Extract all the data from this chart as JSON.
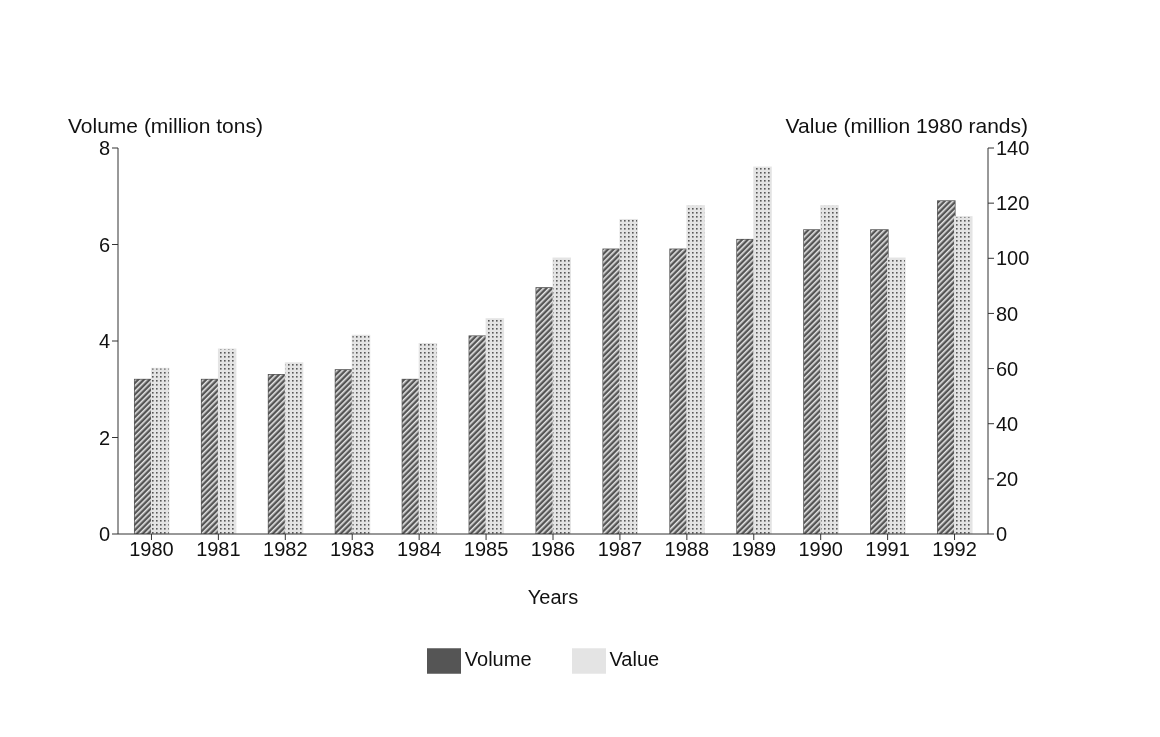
{
  "chart_data": {
    "type": "bar",
    "xlabel": "Years",
    "ylabel": "Volume (million tons)",
    "y2label": "Value (million 1980 rands)",
    "categories": [
      "1980",
      "1981",
      "1982",
      "1983",
      "1984",
      "1985",
      "1986",
      "1987",
      "1988",
      "1989",
      "1990",
      "1991",
      "1992"
    ],
    "series": [
      {
        "name": "Volume",
        "color": "#555555",
        "values": [
          3.2,
          3.2,
          3.3,
          3.4,
          3.2,
          4.1,
          5.1,
          5.9,
          5.9,
          6.1,
          6.3,
          6.3,
          6.9
        ]
      },
      {
        "name": "Value",
        "color": "#e4e4e4",
        "axis": "y2",
        "values": [
          60,
          67,
          62,
          72,
          69,
          78,
          100,
          114,
          119,
          133,
          119,
          100,
          115
        ]
      }
    ],
    "ylim": [
      0,
      8
    ],
    "yticks": [
      0,
      2,
      4,
      6,
      8
    ],
    "y2lim": [
      0,
      140
    ],
    "y2ticks": [
      0,
      20,
      40,
      60,
      80,
      100,
      120,
      140
    ],
    "grid": false,
    "legend": "bottom"
  }
}
